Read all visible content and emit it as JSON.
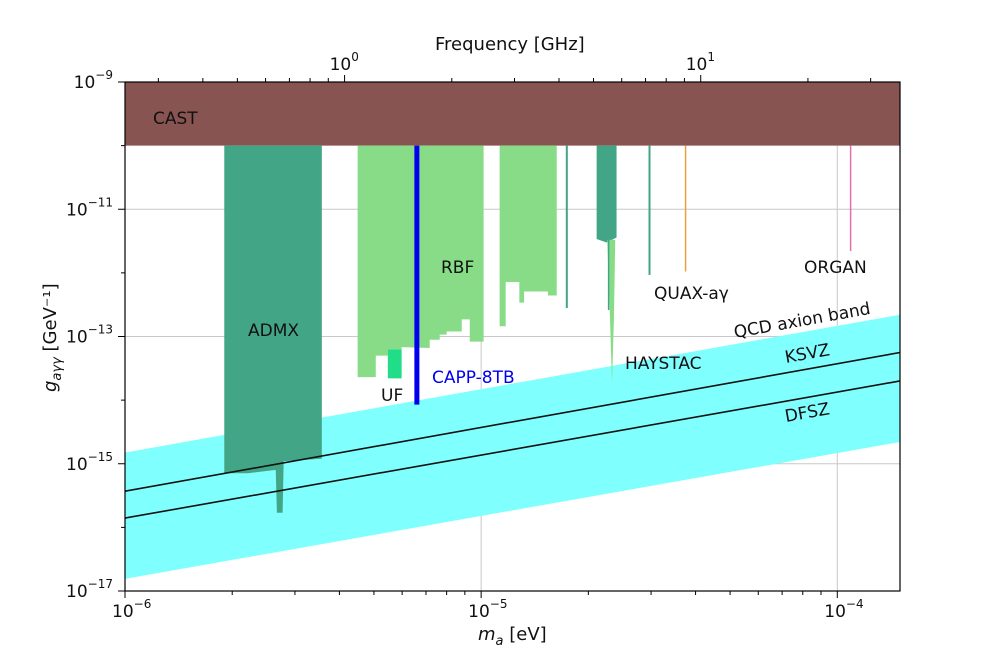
{
  "chart_data": {
    "type": "area",
    "title": "",
    "xlabel": {
      "symbol": "m",
      "sub": "a",
      "unit": " [eV]"
    },
    "ylabel": {
      "symbol": "g",
      "sub": "aγγ",
      "unit": " [GeV⁻¹]"
    },
    "top_xlabel": "Frequency [GHz]",
    "x_scale": "log",
    "y_scale": "log",
    "xlim": [
      1e-06,
      0.00015
    ],
    "ylim": [
      1e-17,
      1e-09
    ],
    "grid": true,
    "x_ticks": [
      {
        "value": 1e-06,
        "base": "10",
        "exp": "−6"
      },
      {
        "value": 1e-05,
        "base": "10",
        "exp": "−5"
      },
      {
        "value": 0.0001,
        "base": "10",
        "exp": "−4"
      }
    ],
    "y_ticks": [
      {
        "value": 1e-09,
        "base": "10",
        "exp": "−9"
      },
      {
        "value": 1e-11,
        "base": "10",
        "exp": "−11"
      },
      {
        "value": 1e-13,
        "base": "10",
        "exp": "−13"
      },
      {
        "value": 1e-15,
        "base": "10",
        "exp": "−15"
      },
      {
        "value": 1e-17,
        "base": "10",
        "exp": "−17"
      }
    ],
    "top_ticks": [
      {
        "value_ghz": 1,
        "base": "10",
        "exp": "0"
      },
      {
        "value_ghz": 10,
        "base": "10",
        "exp": "1"
      }
    ],
    "regions": [
      {
        "name": "CAST",
        "color": "#875452",
        "points": [
          [
            1e-06,
            1e-09
          ],
          [
            0.00015,
            1e-09
          ],
          [
            0.00015,
            1e-10
          ],
          [
            1e-06,
            1e-10
          ]
        ]
      },
      {
        "name": "ADMX",
        "color": "#42a585",
        "points": [
          [
            1.9e-06,
            1e-10
          ],
          [
            3.57e-06,
            1e-10
          ],
          [
            3.57e-06,
            1.2e-15
          ],
          [
            2.79e-06,
            1.1e-15
          ],
          [
            2.77e-06,
            1.7e-16
          ],
          [
            2.67e-06,
            1.7e-16
          ],
          [
            2.65e-06,
            8e-16
          ],
          [
            2.21e-06,
            7.1e-16
          ],
          [
            1.9e-06,
            7.1e-16
          ]
        ]
      },
      {
        "name": "RBF",
        "color": "#88dc88",
        "points": [
          [
            4.5e-06,
            1e-10
          ],
          [
            1.016e-05,
            1e-10
          ],
          [
            1.016e-05,
            8.3e-14
          ],
          [
            9.29e-06,
            8.3e-14
          ],
          [
            9.29e-06,
            1.86e-13
          ],
          [
            8.82e-06,
            1.86e-13
          ],
          [
            8.82e-06,
            1.2e-13
          ],
          [
            8e-06,
            1.2e-13
          ],
          [
            8e-06,
            1.07e-13
          ],
          [
            7.65e-06,
            1.07e-13
          ],
          [
            7.65e-06,
            8.9e-14
          ],
          [
            7.17e-06,
            8.9e-14
          ],
          [
            7.17e-06,
            6.6e-14
          ],
          [
            5.98e-06,
            6.8e-14
          ],
          [
            5.98e-06,
            6.3e-14
          ],
          [
            5.47e-06,
            6.3e-14
          ],
          [
            5.47e-06,
            5e-14
          ],
          [
            5.06e-06,
            5e-14
          ],
          [
            5.06e-06,
            2.3e-14
          ],
          [
            4.5e-06,
            2.3e-14
          ]
        ]
      },
      {
        "name": "RBF",
        "color": "#88dc88",
        "points": [
          [
            1.127e-05,
            1e-10
          ],
          [
            1.63e-05,
            1e-10
          ],
          [
            1.63e-05,
            4.4e-13
          ],
          [
            1.54e-05,
            4.4e-13
          ],
          [
            1.54e-05,
            5.1e-13
          ],
          [
            1.32e-05,
            5.1e-13
          ],
          [
            1.32e-05,
            3.4e-13
          ],
          [
            1.28e-05,
            3.4e-13
          ],
          [
            1.28e-05,
            7.2e-13
          ],
          [
            1.172e-05,
            7.2e-13
          ],
          [
            1.172e-05,
            1.45e-13
          ],
          [
            1.127e-05,
            1.45e-13
          ]
        ]
      },
      {
        "name": "UF",
        "color": "#22dd88",
        "points": [
          [
            5.47e-06,
            6.3e-14
          ],
          [
            5.98e-06,
            6.3e-14
          ],
          [
            5.98e-06,
            2.2e-14
          ],
          [
            5.47e-06,
            2.2e-14
          ]
        ]
      },
      {
        "name": "HAYSTAC",
        "color": "#42a585",
        "points": [
          [
            2.11e-05,
            1e-10
          ],
          [
            2.4e-05,
            1e-10
          ],
          [
            2.4e-05,
            3.6e-12
          ],
          [
            2.25e-05,
            3e-12
          ],
          [
            2.11e-05,
            3.4e-12
          ]
        ]
      },
      {
        "name": "HAYSTAC",
        "color": "#88dc88",
        "points": [
          [
            2.26e-05,
            3.3e-12
          ],
          [
            2.38e-05,
            3.3e-12
          ],
          [
            2.36e-05,
            2e-13
          ],
          [
            2.33e-05,
            1.8e-14
          ],
          [
            2.3e-05,
            2e-13
          ]
        ]
      }
    ],
    "lines": [
      {
        "name": "CAPP-8TB",
        "color": "#0000ee",
        "m": 6.6e-06,
        "g_top": 1e-10,
        "g_bottom": 8.5e-15,
        "width": 5
      },
      {
        "name": "",
        "color": "#42a585",
        "m": 1.74e-05,
        "g_top": 1e-10,
        "g_bottom": 2.8e-13,
        "width": 2
      },
      {
        "name": "",
        "color": "#42a585",
        "m": 2.28e-05,
        "g_top": 3.3e-12,
        "g_bottom": 2.6e-13,
        "width": 1.5
      },
      {
        "name": "",
        "color": "#42a585",
        "m": 2.97e-05,
        "g_top": 1e-10,
        "g_bottom": 9.3e-13,
        "width": 2
      },
      {
        "name": "QUAX-aγ",
        "color": "#e8a040",
        "m": 3.75e-05,
        "g_top": 1e-10,
        "g_bottom": 1.05e-12,
        "width": 1.5
      },
      {
        "name": "ORGAN",
        "color": "#e070b0",
        "m": 0.000109,
        "g_top": 1e-10,
        "g_bottom": 2.2e-12,
        "width": 1.5
      }
    ],
    "band": {
      "name": "QCD axion band",
      "color": "#80ffff",
      "upper": [
        [
          1e-06,
          1.5e-15
        ],
        [
          0.00015,
          2.2e-13
        ]
      ],
      "lower": [
        [
          1e-06,
          1.55e-17
        ],
        [
          0.00015,
          2.2e-15
        ]
      ]
    },
    "model_lines": [
      {
        "name": "KSVZ",
        "color": "#111111",
        "points": [
          [
            1e-06,
            3.7e-16
          ],
          [
            0.00015,
            5.6e-14
          ]
        ]
      },
      {
        "name": "DFSZ",
        "color": "#111111",
        "points": [
          [
            1e-06,
            1.4e-16
          ],
          [
            0.00015,
            2e-14
          ]
        ]
      }
    ],
    "annotations": {
      "cast": "CAST",
      "admx": "ADMX",
      "rbf": "RBF",
      "uf": "UF",
      "capp": "CAPP-8TB",
      "haystac": "HAYSTAC",
      "quax": "QUAX-aγ",
      "organ": "ORGAN",
      "qcd": "QCD axion band",
      "ksvz": "KSVZ",
      "dfsz": "DFSZ"
    },
    "annotation_colors": {
      "capp": "#0000ee"
    }
  }
}
